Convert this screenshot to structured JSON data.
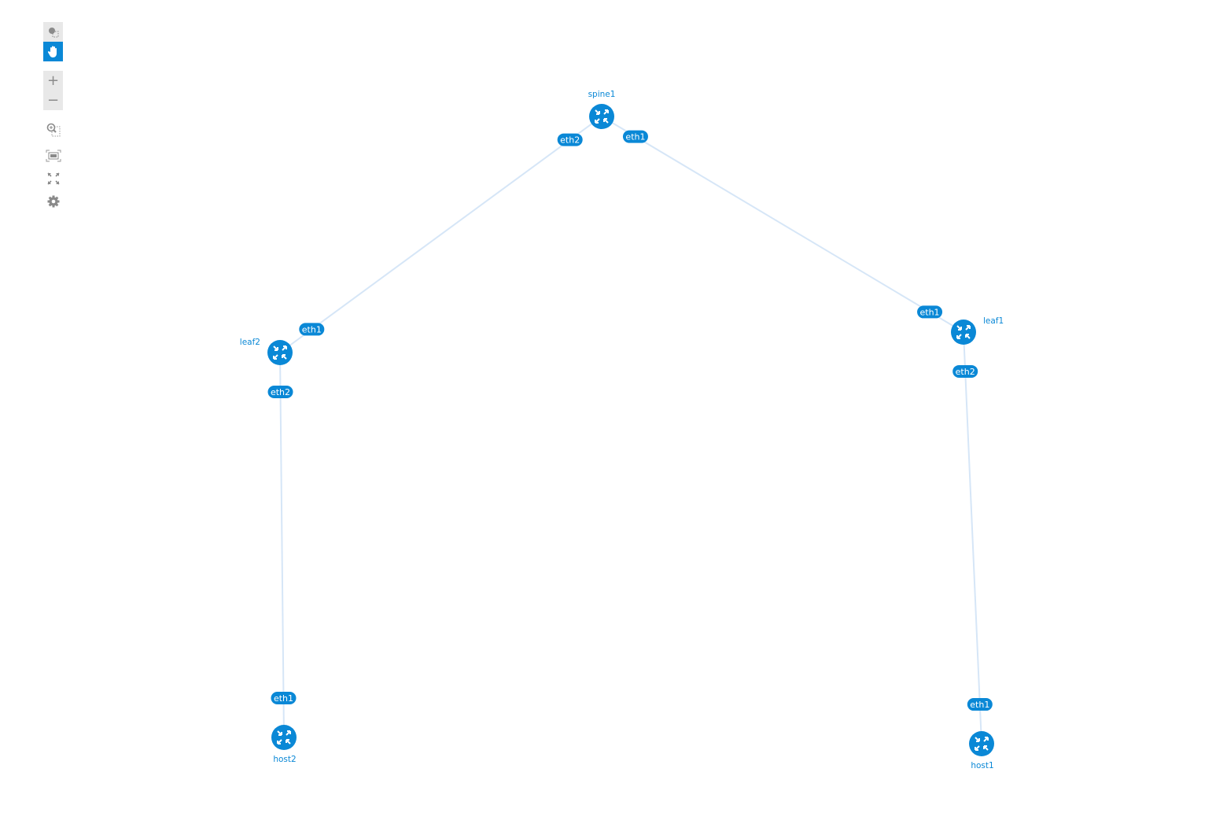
{
  "toolbar": {
    "items": [
      {
        "icon": "select-icon",
        "active": false
      },
      {
        "icon": "hand-pan-icon",
        "active": true
      },
      {
        "icon": "zoom-in-icon",
        "label": "+"
      },
      {
        "icon": "zoom-out-icon",
        "label": "−"
      },
      {
        "icon": "zoom-by-selection-icon"
      },
      {
        "icon": "fit-to-view-icon"
      },
      {
        "icon": "fullscreen-icon"
      },
      {
        "icon": "gear-icon"
      }
    ]
  },
  "colors": {
    "accent": "#0a88d6",
    "link": "#d6e6f7",
    "toolbar_bg": "#e8e8e8",
    "toolbar_icon": "#8a8a8a"
  },
  "nodes": [
    {
      "name": "spine1",
      "icon": "router-icon"
    },
    {
      "name": "leaf1",
      "icon": "router-icon"
    },
    {
      "name": "leaf2",
      "icon": "router-icon"
    },
    {
      "name": "host1",
      "icon": "router-icon"
    },
    {
      "name": "host2",
      "icon": "router-icon"
    }
  ],
  "links": [
    {
      "source": "spine1",
      "source_port": "eth1",
      "target": "leaf1",
      "target_port": "eth1"
    },
    {
      "source": "spine1",
      "source_port": "eth2",
      "target": "leaf2",
      "target_port": "eth1"
    },
    {
      "source": "leaf1",
      "source_port": "eth2",
      "target": "host1",
      "target_port": "eth1"
    },
    {
      "source": "leaf2",
      "source_port": "eth2",
      "target": "host2",
      "target_port": "eth1"
    }
  ]
}
